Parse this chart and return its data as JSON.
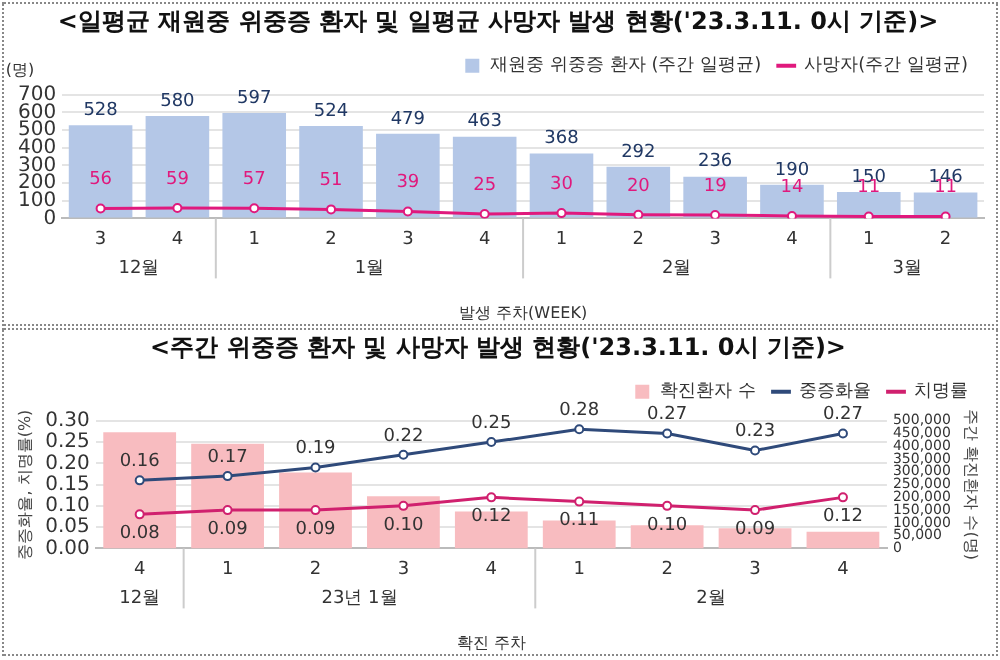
{
  "chart_data": [
    {
      "type": "bar",
      "title": "<일평균 재원중 위중증 환자 및 일평균 사망자 발생 현황('23.3.11. 0시 기준)>",
      "ylabel": "(명)",
      "xlabel": "발생 주차(WEEK)",
      "categories": [
        "3",
        "4",
        "1",
        "2",
        "3",
        "4",
        "1",
        "2",
        "3",
        "4",
        "1",
        "2"
      ],
      "annotations": [
        "12월",
        "1월",
        "2월",
        "3월"
      ],
      "series": [
        {
          "name": "재원중 위중증 환자 (주간 일평균)",
          "color": "#b4c7e7",
          "values": [
            528,
            580,
            597,
            524,
            479,
            463,
            368,
            292,
            236,
            190,
            150,
            146
          ]
        },
        {
          "name": "사망자(주간 일평균)",
          "type": "line",
          "color": "#e0197d",
          "values": [
            56,
            59,
            57,
            51,
            39,
            25,
            30,
            20,
            19,
            14,
            11,
            11
          ]
        }
      ],
      "ylim": [
        0,
        700
      ],
      "yticks": [
        0,
        100,
        200,
        300,
        400,
        500,
        600,
        700
      ],
      "grid": "y",
      "legend": "top right",
      "marker": "circle",
      "data_labels": true
    },
    {
      "type": "bar",
      "title": "<주간 위중증 환자 및 사망자 발생 현황('23.3.11. 0시 기준)>",
      "ylabel": "중증화율, 치명률(%)",
      "y2label": "주간 확진환자 수(명)",
      "xlabel": "확진 주차",
      "categories": [
        "4",
        "1",
        "2",
        "3",
        "4",
        "1",
        "2",
        "3",
        "4"
      ],
      "annotations": [
        "12월",
        "23년 1월",
        "2월"
      ],
      "series": [
        {
          "name": "확진환자 수",
          "axis": "y2",
          "color": "#f8bcc0",
          "values": [
            455000,
            410000,
            297000,
            204000,
            145000,
            109000,
            91000,
            79000,
            65000
          ]
        },
        {
          "name": "중증화율",
          "type": "line",
          "color": "#2f4a7a",
          "values": [
            0.16,
            0.17,
            0.19,
            0.22,
            0.25,
            0.28,
            0.27,
            0.23,
            0.27
          ],
          "value_labels": [
            "0.16",
            "0.17",
            "0.19",
            "0.22",
            "0.25",
            "0.28",
            "0.27",
            "0.23",
            "0.27"
          ]
        },
        {
          "name": "치명률",
          "type": "line",
          "color": "#d0206e",
          "values": [
            0.08,
            0.09,
            0.09,
            0.1,
            0.12,
            0.11,
            0.1,
            0.09,
            0.12
          ],
          "value_labels": [
            "0.08",
            "0.09",
            "0.09",
            "0.10",
            "0.12",
            "0.11",
            "0.10",
            "0.09",
            "0.12"
          ]
        }
      ],
      "ylim": [
        0,
        0.3
      ],
      "yticks": [
        {
          "value": 0,
          "label": "0.00"
        },
        {
          "value": 0.05,
          "label": "0.05"
        },
        {
          "value": 0.1,
          "label": "0.10"
        },
        {
          "value": 0.15,
          "label": "0.15"
        },
        {
          "value": 0.2,
          "label": "0.20"
        },
        {
          "value": 0.25,
          "label": "0.25"
        },
        {
          "value": 0.3,
          "label": "0.30"
        }
      ],
      "y2lim": [
        0,
        500000
      ],
      "y2ticks": [
        0,
        {
          "value": 50000,
          "label": "50,000"
        },
        {
          "value": 100000,
          "label": "100,000"
        },
        {
          "value": 150000,
          "label": "150,000"
        },
        {
          "value": 200000,
          "label": "200,000"
        },
        {
          "value": 250000,
          "label": "250,000"
        },
        {
          "value": 300000,
          "label": "300,000"
        },
        {
          "value": 350000,
          "label": "350,000"
        },
        {
          "value": 400000,
          "label": "400,000"
        },
        {
          "value": 450000,
          "label": "450,000"
        },
        {
          "value": 500000,
          "label": "500,000"
        }
      ],
      "grid": "y",
      "legend": "top right",
      "marker": "circle"
    }
  ]
}
